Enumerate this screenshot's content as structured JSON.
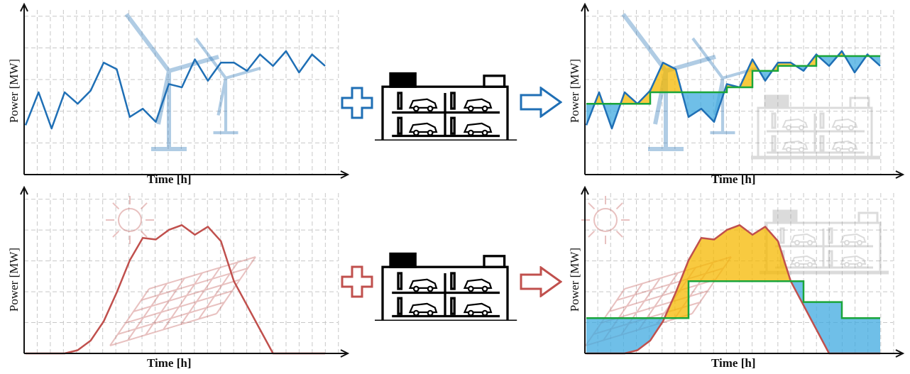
{
  "labels": {
    "x_axis": "Time [h]",
    "y_axis": "Power [MW]"
  },
  "colors": {
    "wind": "#1f6fb5",
    "solar": "#c0504d",
    "battery_line": "#1aa53a",
    "surplus": "#f5b800",
    "deficit": "#3fa9e0",
    "grid": "#bbbbbb"
  },
  "icons": [
    "wind-turbine-icon",
    "sun-icon",
    "solar-panel-icon",
    "plus-icon",
    "arrow-right-icon",
    "parking-garage-battery-icon",
    "car-icon"
  ],
  "chart_data": [
    {
      "type": "line",
      "name": "wind-power",
      "xlabel": "Time [h]",
      "ylabel": "Power [MW]",
      "x": [
        0,
        1,
        2,
        3,
        4,
        5,
        6,
        7,
        8,
        9,
        10,
        11,
        12,
        13,
        14,
        15,
        16,
        17,
        18,
        19,
        20,
        21,
        22,
        23
      ],
      "values": [
        30,
        50,
        28,
        50,
        43,
        51,
        68,
        64,
        35,
        40,
        32,
        55,
        53,
        70,
        57,
        68,
        68,
        63,
        73,
        66,
        75,
        62,
        73,
        66
      ],
      "ylim": [
        0,
        100
      ]
    },
    {
      "type": "line",
      "name": "wind-with-storage",
      "xlabel": "Time [h]",
      "ylabel": "Power [MW]",
      "x": [
        0,
        1,
        2,
        3,
        4,
        5,
        6,
        7,
        8,
        9,
        10,
        11,
        12,
        13,
        14,
        15,
        16,
        17,
        18,
        19,
        20,
        21,
        22,
        23
      ],
      "values": [
        30,
        50,
        28,
        50,
        43,
        51,
        68,
        64,
        35,
        40,
        32,
        55,
        53,
        70,
        57,
        68,
        68,
        63,
        73,
        66,
        75,
        62,
        73,
        66
      ],
      "step_values": [
        43,
        43,
        43,
        43,
        43,
        50,
        50,
        50,
        50,
        50,
        50,
        53,
        53,
        63,
        63,
        66,
        66,
        66,
        72,
        72,
        72,
        72,
        72,
        72
      ],
      "ylim": [
        0,
        100
      ]
    },
    {
      "type": "line",
      "name": "solar-power",
      "xlabel": "Time [h]",
      "ylabel": "Power [MW]",
      "x": [
        0,
        1,
        2,
        3,
        4,
        5,
        6,
        7,
        8,
        9,
        10,
        11,
        12,
        13,
        14,
        15,
        16,
        17,
        18,
        19,
        20,
        21,
        22,
        23
      ],
      "values": [
        0,
        0,
        0,
        0,
        2,
        8,
        20,
        38,
        58,
        72,
        71,
        77,
        80,
        74,
        79,
        70,
        45,
        30,
        15,
        0,
        0,
        0,
        0,
        0
      ],
      "ylim": [
        0,
        100
      ]
    },
    {
      "type": "line",
      "name": "solar-with-storage",
      "xlabel": "Time [h]",
      "ylabel": "Power [MW]",
      "x": [
        0,
        1,
        2,
        3,
        4,
        5,
        6,
        7,
        8,
        9,
        10,
        11,
        12,
        13,
        14,
        15,
        16,
        17,
        18,
        19,
        20,
        21,
        22,
        23
      ],
      "values": [
        0,
        0,
        0,
        0,
        2,
        8,
        20,
        38,
        58,
        72,
        71,
        77,
        80,
        74,
        79,
        70,
        45,
        30,
        15,
        0,
        0,
        0,
        0,
        0
      ],
      "step_values": [
        22,
        22,
        22,
        22,
        22,
        22,
        22,
        22,
        45,
        45,
        45,
        45,
        45,
        45,
        45,
        45,
        45,
        32,
        32,
        32,
        22,
        22,
        22,
        22
      ],
      "ylim": [
        0,
        100
      ]
    }
  ]
}
